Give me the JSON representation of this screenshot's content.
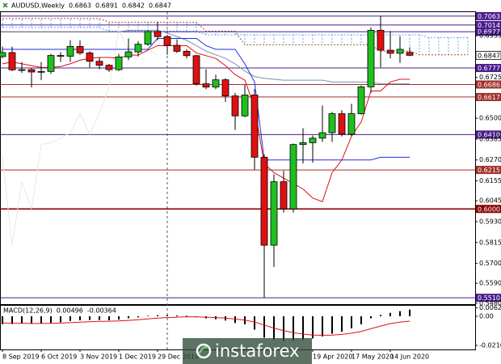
{
  "chart_data": {
    "type": "candlestick",
    "title": "AUDUSD,Weekly",
    "watermark": "instaforex",
    "categories": [
      "8 Sep 2019",
      null,
      null,
      null,
      "6 Oct 2019",
      null,
      null,
      null,
      "3 Nov 2019",
      null,
      null,
      null,
      "1 Dec 2019",
      null,
      null,
      null,
      "29 Dec 2019",
      null,
      null,
      null,
      null,
      null,
      null,
      null,
      null,
      null,
      null,
      null,
      null,
      null,
      null,
      null,
      "19 Apr 2020",
      null,
      null,
      null,
      "17 May 2020",
      null,
      null,
      null,
      "14 Jun 2020",
      null,
      null,
      null,
      null,
      null,
      null,
      null,
      null
    ],
    "open": [
      0.684,
      0.6862,
      0.6767,
      0.6768,
      0.6755,
      0.6758,
      0.6846,
      0.6842,
      0.6896,
      0.686,
      0.6814,
      0.6792,
      0.6768,
      0.6838,
      0.6866,
      0.6908,
      0.6978,
      0.695,
      0.6902,
      0.6869,
      0.6845,
      0.669,
      0.6672,
      0.6712,
      0.6623,
      0.6513,
      0.6628,
      0.6285,
      0.58,
      0.615,
      0.6,
      0.6355,
      0.6365,
      0.639,
      0.642,
      0.6525,
      0.6412,
      0.6525,
      0.6673,
      0.6985,
      0.6875,
      0.6858,
      0.6863,
      null,
      null,
      null,
      null,
      null,
      null
    ],
    "high": [
      0.6895,
      0.6895,
      0.681,
      0.6775,
      0.681,
      0.6855,
      0.6865,
      0.693,
      0.693,
      0.687,
      0.6835,
      0.68,
      0.6855,
      0.694,
      0.6925,
      0.6985,
      0.7032,
      0.696,
      0.6935,
      0.688,
      0.685,
      0.677,
      0.674,
      0.672,
      0.664,
      0.6685,
      0.666,
      0.63,
      0.619,
      0.621,
      0.636,
      0.6445,
      0.6405,
      0.657,
      0.6535,
      0.6545,
      0.658,
      0.668,
      0.7,
      0.7064,
      0.698,
      0.695,
      0.6891,
      null,
      null,
      null,
      null,
      null,
      null
    ],
    "low": [
      0.683,
      0.676,
      0.675,
      0.667,
      0.671,
      0.6745,
      0.681,
      0.681,
      0.685,
      0.678,
      0.677,
      0.6755,
      0.676,
      0.682,
      0.684,
      0.69,
      0.693,
      0.685,
      0.686,
      0.683,
      0.668,
      0.666,
      0.666,
      0.659,
      0.6435,
      0.6505,
      0.6215,
      0.551,
      0.568,
      0.598,
      0.598,
      0.625,
      0.6255,
      0.637,
      0.637,
      0.64,
      0.64,
      0.652,
      0.664,
      0.678,
      0.683,
      0.6805,
      0.6842,
      null,
      null,
      null,
      null,
      null,
      null
    ],
    "close": [
      0.6862,
      0.6767,
      0.6768,
      0.6755,
      0.6758,
      0.6846,
      0.6842,
      0.6896,
      0.686,
      0.6814,
      0.6792,
      0.6768,
      0.6838,
      0.6866,
      0.6908,
      0.6978,
      0.695,
      0.6902,
      0.6869,
      0.6845,
      0.669,
      0.6672,
      0.6712,
      0.6623,
      0.6513,
      0.6628,
      0.6285,
      0.58,
      0.615,
      0.6,
      0.6355,
      0.6365,
      0.639,
      0.642,
      0.6525,
      0.6412,
      0.6525,
      0.6673,
      0.6985,
      0.6875,
      0.6858,
      0.688,
      0.6847,
      null,
      null,
      null,
      null,
      null,
      null
    ],
    "up_color": "#1fbf1f",
    "down_color": "#e01010",
    "lines": [
      {
        "color": "#e8e8e8",
        "values": [
          0.6285,
          0.58,
          0.615,
          0.6,
          0.6355,
          0.6365,
          0.639,
          0.642,
          0.6525,
          0.6412,
          0.6525,
          0.6673,
          0.6985,
          0.6875,
          0.6858,
          0.688,
          0.6847,
          null,
          null,
          null,
          null,
          null,
          null,
          null,
          null,
          null,
          null,
          null,
          null,
          null,
          null,
          null,
          null,
          null,
          null,
          null,
          null,
          null,
          null,
          null,
          null,
          null,
          null,
          null,
          null,
          null,
          null,
          null,
          null
        ]
      },
      {
        "color": "#7f8fb0",
        "values": [
          0.6975,
          0.6975,
          0.6975,
          0.6975,
          0.6975,
          0.6975,
          0.6975,
          0.6975,
          0.6975,
          0.6975,
          0.6975,
          0.6975,
          0.6975,
          0.6985,
          0.6985,
          0.6985,
          0.6985,
          0.697,
          0.695,
          0.693,
          0.69,
          0.687,
          0.685,
          0.683,
          0.68,
          0.676,
          0.673,
          0.672,
          0.6715,
          0.671,
          0.671,
          0.671,
          0.671,
          0.671,
          0.67,
          0.67,
          0.67,
          0.67,
          0.67,
          0.669,
          0.669,
          0.669,
          0.669,
          null,
          null,
          null,
          null,
          null,
          null
        ]
      },
      {
        "color": "#1f2fe0",
        "values": [
          0.688,
          0.688,
          0.688,
          0.688,
          0.688,
          0.688,
          0.688,
          0.688,
          0.688,
          0.688,
          0.688,
          0.688,
          0.688,
          0.688,
          0.688,
          0.688,
          0.694,
          0.694,
          0.694,
          0.694,
          0.694,
          0.69,
          0.688,
          0.688,
          0.688,
          0.68,
          0.67,
          0.627,
          0.627,
          0.627,
          0.627,
          0.627,
          0.627,
          0.627,
          0.627,
          0.627,
          0.627,
          0.627,
          0.627,
          0.6285,
          0.6285,
          0.6285,
          0.6285,
          null,
          null,
          null,
          null,
          null,
          null
        ]
      },
      {
        "color": "#e01010",
        "values": [
          0.68,
          0.681,
          0.68,
          0.679,
          0.678,
          0.678,
          0.6785,
          0.68,
          0.682,
          0.683,
          0.6835,
          0.6835,
          0.683,
          0.6848,
          0.6848,
          0.6875,
          0.69,
          0.69,
          0.69,
          0.69,
          0.686,
          0.6845,
          0.683,
          0.679,
          0.674,
          0.671,
          0.656,
          0.625,
          0.62,
          0.617,
          0.614,
          0.611,
          0.606,
          0.604,
          0.62,
          0.627,
          0.64,
          0.648,
          0.665,
          0.665,
          0.67,
          0.6715,
          0.6715,
          null,
          null,
          null,
          null,
          null,
          null
        ]
      }
    ],
    "cloud": {
      "color_a": "#5aa9f0",
      "color_b": "#a0522d",
      "span_a": [
        0.7,
        0.7,
        0.7,
        0.7,
        0.7,
        0.7,
        0.7,
        0.7,
        0.7,
        0.7,
        0.7,
        0.698,
        0.698,
        0.698,
        0.698,
        0.698,
        0.698,
        0.698,
        0.698,
        0.698,
        0.698,
        0.696,
        0.696,
        0.696,
        0.696,
        0.696,
        0.696,
        0.696,
        0.696,
        0.696,
        0.696,
        0.696,
        0.696,
        0.696,
        0.696,
        0.696,
        0.696,
        0.696,
        0.696,
        0.696,
        0.696,
        0.696,
        0.696,
        0.696,
        0.6945,
        0.6945,
        0.6945,
        0.6945,
        0.6945
      ],
      "span_b": [
        0.705,
        0.705,
        0.705,
        0.705,
        0.705,
        0.705,
        0.705,
        0.705,
        0.705,
        0.705,
        0.705,
        0.703,
        0.703,
        0.703,
        0.703,
        0.703,
        0.703,
        0.703,
        0.703,
        0.703,
        0.703,
        0.698,
        0.698,
        0.698,
        0.698,
        0.6905,
        0.6905,
        0.6905,
        0.6905,
        0.6905,
        0.6905,
        0.6905,
        0.6905,
        0.6905,
        0.6905,
        0.6905,
        0.6905,
        0.6905,
        0.6905,
        0.687,
        0.687,
        0.687,
        0.687,
        0.685,
        0.685,
        0.685,
        0.685,
        0.685,
        0.685
      ]
    },
    "levels": [
      {
        "value": 0.7063,
        "label": "0.7063",
        "color": "#4b1c8c"
      },
      {
        "value": 0.7014,
        "label": "0.7014",
        "color": "#4b1c8c"
      },
      {
        "value": 0.6977,
        "label": "0.6977",
        "color": "#4b1c8c"
      },
      {
        "value": 0.6777,
        "label": "0.6777",
        "color": "#4b1c8c"
      },
      {
        "value": 0.6686,
        "label": "0.6686",
        "color": "#a0302a"
      },
      {
        "value": 0.6617,
        "label": "0.6617",
        "color": "#a0302a"
      },
      {
        "value": 0.641,
        "label": "0.6410",
        "color": "#4b1c8c"
      },
      {
        "value": 0.6215,
        "label": "0.6215",
        "color": "#a0302a"
      },
      {
        "value": 0.6,
        "label": "0.6000",
        "color": "#8b0000"
      },
      {
        "value": 0.551,
        "label": "0.5510",
        "color": "#4b1c8c"
      }
    ],
    "ylim": [
      0.5475,
      0.7085
    ],
    "yticks": [
      0.6955,
      0.6725,
      {
        "value": 0.65,
        "label": "0.6500"
      },
      0.6385,
      {
        "value": 0.627,
        "label": "0.6270"
      },
      0.6155,
      0.6045,
      {
        "value": 0.593,
        "label": "0.5930"
      },
      0.5815,
      {
        "value": 0.57,
        "label": "0.5700"
      },
      {
        "value": 0.559,
        "label": "0.5590"
      },
      {
        "value": 0.548,
        "label": "0.5480"
      }
    ],
    "macd": {
      "label": "MACD(12,26,9)",
      "signal_color": "#e01010",
      "hist_color": "#000000",
      "histogram": [
        -0.006,
        -0.0058,
        -0.0055,
        -0.0057,
        -0.0055,
        -0.005,
        -0.0045,
        -0.0035,
        -0.003,
        -0.0028,
        -0.0028,
        -0.003,
        -0.0025,
        -0.0015,
        -0.0008,
        0.0004,
        0.0008,
        0.0008,
        0.0006,
        0.0004,
        -0.0006,
        -0.0016,
        -0.0022,
        -0.0032,
        -0.005,
        -0.006,
        -0.01,
        -0.016,
        -0.0175,
        -0.0185,
        -0.018,
        -0.0175,
        -0.0165,
        -0.015,
        -0.013,
        -0.0115,
        -0.009,
        -0.006,
        -0.0015,
        0.001,
        0.0025,
        0.0038,
        0.00496,
        null,
        null,
        null,
        null,
        null,
        null
      ],
      "signal": [
        -0.005,
        -0.0052,
        -0.0053,
        -0.0054,
        -0.0054,
        -0.0053,
        -0.0051,
        -0.0048,
        -0.0044,
        -0.0041,
        -0.0038,
        -0.0037,
        -0.0035,
        -0.0031,
        -0.0026,
        -0.002,
        -0.0014,
        -0.001,
        -0.0007,
        -0.0004,
        -0.0005,
        -0.0007,
        -0.001,
        -0.0014,
        -0.0021,
        -0.0029,
        -0.0043,
        -0.0066,
        -0.0088,
        -0.0107,
        -0.0122,
        -0.0133,
        -0.014,
        -0.0142,
        -0.014,
        -0.0135,
        -0.0126,
        -0.0113,
        -0.0093,
        -0.0073,
        -0.0055,
        -0.0044,
        -0.00364,
        null,
        null,
        null,
        null,
        null,
        null
      ],
      "ylim": [
        -0.0247,
        0.0078
      ],
      "yticks": [
        0.00622,
        {
          "value": 0,
          "label": "0.00"
        },
        -0.02166
      ]
    }
  }
}
